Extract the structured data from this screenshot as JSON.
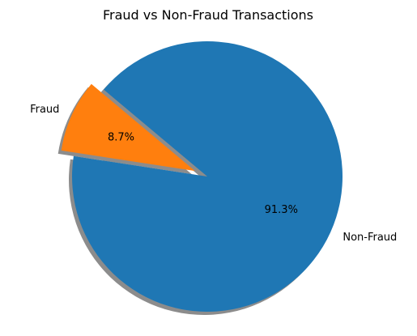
{
  "chart_data": {
    "type": "pie",
    "title": "Fraud vs Non-Fraud Transactions",
    "labels": [
      "Fraud",
      "Non-Fraud"
    ],
    "values": [
      8.7,
      91.3
    ],
    "pct_labels": [
      "8.7%",
      "91.3%"
    ],
    "colors": [
      "#ff7f0e",
      "#1f77b4"
    ],
    "exploded": [
      "Fraud"
    ],
    "shadow": true,
    "legend": "none"
  }
}
